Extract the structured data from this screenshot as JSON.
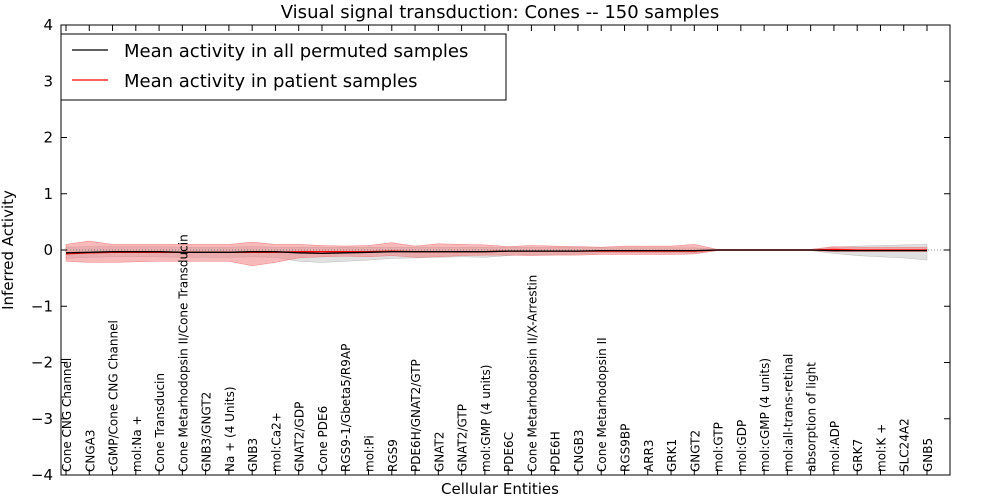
{
  "chart_data": {
    "type": "line",
    "title": "Visual signal transduction: Cones -- 150 samples",
    "xlabel": "Cellular Entities",
    "ylabel": "Inferred Activity",
    "ylim": [
      -4,
      4
    ],
    "yticks": [
      -4,
      -3,
      -2,
      -1,
      0,
      1,
      2,
      3,
      4
    ],
    "ytick_labels": [
      "−4",
      "−3",
      "−2",
      "−1",
      "0",
      "1",
      "2",
      "3",
      "4"
    ],
    "legend_position": "top-left",
    "categories": [
      "Cone CNG Channel",
      "CNGA3",
      "cGMP/Cone CNG Channel",
      "mol:Na +",
      "Cone Transducin",
      "Cone Metarhodopsin II/Cone Transducin",
      "GNB3/GNGT2",
      "Na + (4 Units)",
      "GNB3",
      "mol:Ca2+",
      "GNAT2/GDP",
      "Cone PDE6",
      "RGS9-1/Gbeta5/R9AP",
      "mol:Pi",
      "RGS9",
      "PDE6H/GNAT2/GTP",
      "GNAT2",
      "GNAT2/GTP",
      "mol:GMP (4 units)",
      "PDE6C",
      "Cone Metarhodopsin II/X-Arrestin",
      "PDE6H",
      "CNGB3",
      "Cone Metarhodopsin II",
      "RGS9BP",
      "ARR3",
      "GRK1",
      "GNGT2",
      "mol:GTP",
      "mol:GDP",
      "mol:cGMP (4 units)",
      "mol:all-trans-retinal",
      "absorption of light",
      "mol:ADP",
      "GRK7",
      "mol:K +",
      "SLC24A2",
      "GNB5"
    ],
    "series": [
      {
        "name": "Mean activity in all permuted samples",
        "color": "#000000",
        "band_color": "#bbbbbb",
        "values": [
          -0.05,
          -0.04,
          -0.03,
          -0.03,
          -0.03,
          -0.04,
          -0.04,
          -0.04,
          -0.03,
          -0.03,
          -0.05,
          -0.06,
          -0.05,
          -0.04,
          -0.03,
          -0.03,
          -0.03,
          -0.03,
          -0.03,
          -0.02,
          -0.02,
          -0.02,
          -0.02,
          -0.01,
          -0.01,
          -0.01,
          -0.01,
          -0.01,
          0,
          0,
          0,
          0,
          0,
          -0.01,
          -0.01,
          -0.01,
          -0.01,
          -0.01
        ],
        "lower": [
          -0.15,
          -0.13,
          -0.12,
          -0.12,
          -0.12,
          -0.13,
          -0.13,
          -0.13,
          -0.12,
          -0.13,
          -0.2,
          -0.22,
          -0.2,
          -0.18,
          -0.15,
          -0.14,
          -0.13,
          -0.12,
          -0.13,
          -0.1,
          -0.08,
          -0.08,
          -0.07,
          -0.05,
          -0.05,
          -0.05,
          -0.05,
          -0.05,
          -0.01,
          -0.01,
          -0.01,
          -0.01,
          -0.01,
          -0.06,
          -0.1,
          -0.12,
          -0.14,
          -0.18
        ],
        "upper": [
          0.05,
          0.06,
          0.06,
          0.06,
          0.06,
          0.05,
          0.05,
          0.05,
          0.06,
          0.05,
          0.05,
          0.05,
          0.05,
          0.05,
          0.05,
          0.05,
          0.05,
          0.05,
          0.05,
          0.05,
          0.05,
          0.05,
          0.05,
          0.04,
          0.04,
          0.04,
          0.04,
          0.04,
          0.01,
          0.01,
          0.01,
          0.01,
          0.01,
          0.05,
          0.07,
          0.08,
          0.09,
          0.1
        ]
      },
      {
        "name": "Mean activity in patient samples",
        "color": "#ff0000",
        "band_color": "#f08080",
        "values": [
          -0.07,
          -0.05,
          -0.04,
          -0.04,
          -0.04,
          -0.04,
          -0.04,
          -0.04,
          -0.04,
          -0.04,
          -0.03,
          -0.03,
          -0.03,
          -0.03,
          -0.02,
          -0.03,
          -0.03,
          -0.03,
          -0.03,
          -0.02,
          -0.02,
          -0.02,
          -0.02,
          -0.02,
          -0.02,
          -0.02,
          -0.02,
          -0.02,
          0,
          0,
          0,
          0,
          0,
          0.01,
          0,
          0,
          0,
          0
        ],
        "lower": [
          -0.2,
          -0.22,
          -0.22,
          -0.21,
          -0.2,
          -0.2,
          -0.2,
          -0.2,
          -0.28,
          -0.22,
          -0.14,
          -0.12,
          -0.11,
          -0.12,
          -0.1,
          -0.13,
          -0.12,
          -0.1,
          -0.09,
          -0.09,
          -0.1,
          -0.09,
          -0.09,
          -0.08,
          -0.08,
          -0.08,
          -0.08,
          -0.07,
          -0.01,
          -0.01,
          -0.01,
          -0.01,
          -0.01,
          -0.03,
          -0.03,
          -0.03,
          -0.03,
          -0.03
        ],
        "upper": [
          0.1,
          0.16,
          0.1,
          0.1,
          0.1,
          0.1,
          0.1,
          0.1,
          0.14,
          0.1,
          0.1,
          0.08,
          0.07,
          0.08,
          0.13,
          0.07,
          0.11,
          0.1,
          0.09,
          0.06,
          0.08,
          0.07,
          0.06,
          0.05,
          0.07,
          0.07,
          0.07,
          0.1,
          0.01,
          0.01,
          0.01,
          0.01,
          0.01,
          0.06,
          0.05,
          0.05,
          0.05,
          0.05
        ]
      }
    ],
    "zero_line": {
      "value": 0,
      "style": "dotted",
      "color": "#888888"
    }
  }
}
